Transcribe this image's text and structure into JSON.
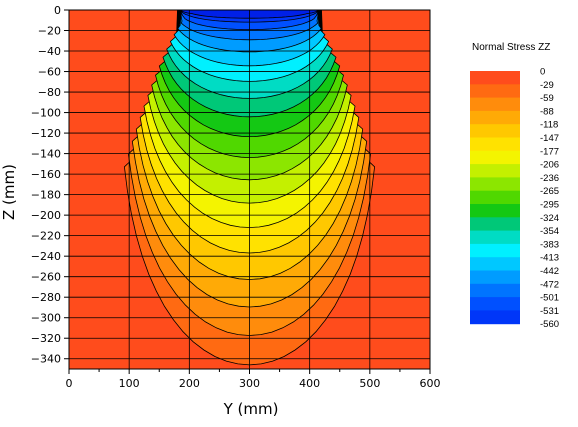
{
  "chart_data": {
    "type": "contour",
    "xlabel": "Y (mm)",
    "ylabel": "Z (mm)",
    "xlim": [
      0,
      600
    ],
    "ylim": [
      -350,
      0
    ],
    "x_ticks": [
      0,
      100,
      200,
      300,
      400,
      500,
      600
    ],
    "y_ticks": [
      0,
      -20,
      -40,
      -60,
      -80,
      -100,
      -120,
      -140,
      -160,
      -180,
      -200,
      -220,
      -240,
      -260,
      -280,
      -300,
      -320,
      -340
    ],
    "grid": true,
    "legend": {
      "title": "Normal Stress ZZ",
      "placement": "right",
      "levels": [
        0,
        -29,
        -59,
        -88,
        -118,
        -147,
        -177,
        -206,
        -236,
        -265,
        -295,
        -324,
        -354,
        -383,
        -413,
        -442,
        -472,
        -501,
        -531,
        -560
      ],
      "colors": [
        "#ff4c1c",
        "#ff6a12",
        "#ff8c0c",
        "#ffaa06",
        "#ffc800",
        "#ffe200",
        "#f4f400",
        "#c4f000",
        "#8ce600",
        "#50d800",
        "#14c814",
        "#00c878",
        "#00dcc4",
        "#00f0ff",
        "#00c8ff",
        "#009cff",
        "#0074ff",
        "#0050ff",
        "#0036f8",
        "#0020e8"
      ]
    },
    "stress_field": {
      "loaded_region_y": [
        180,
        420
      ],
      "peak_stress": -560
    }
  }
}
